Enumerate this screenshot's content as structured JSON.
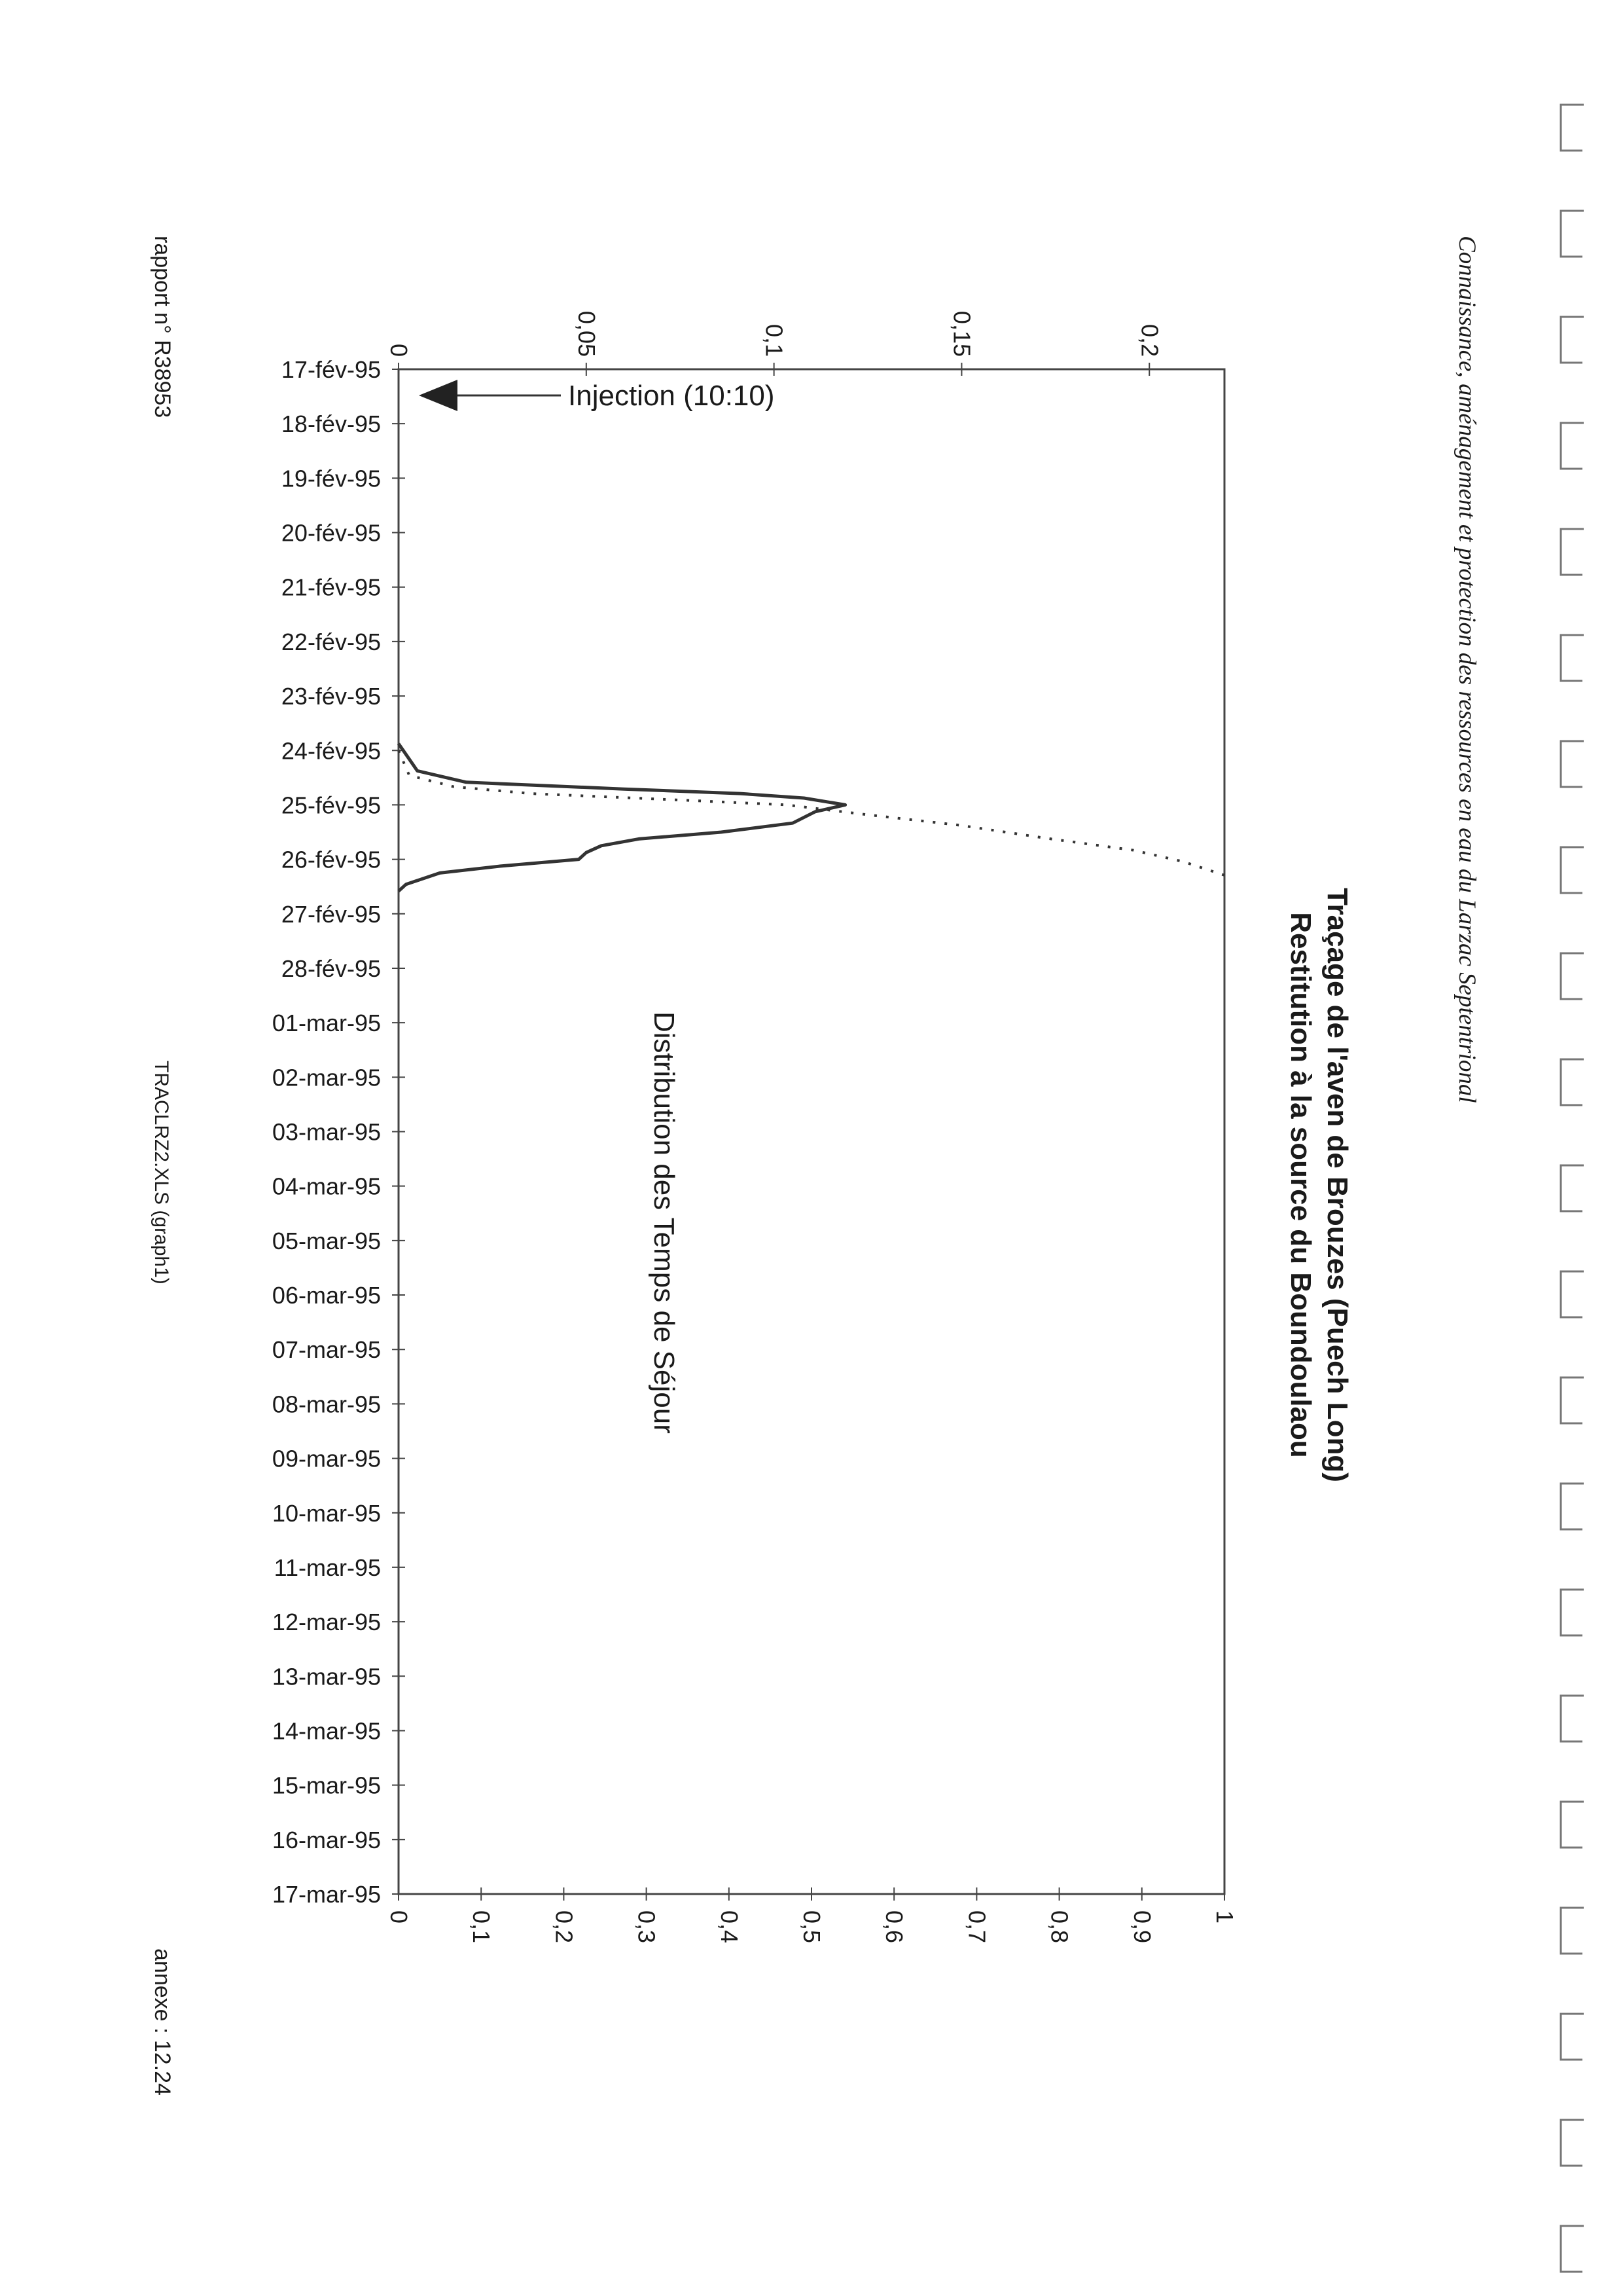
{
  "header": {
    "text": "Connaissance, aménagement et protection des ressources en eau du Larzac Septentrional"
  },
  "footer": {
    "report": "rapport n° R38953",
    "file": "TRACLRZ2.XLS (graph1)",
    "annex": "annexe : 12.24"
  },
  "chart_data": {
    "type": "line",
    "title": "Traçage de l'aven de Brouzes (Puech Long)",
    "subtitle": "Restitution à la source du Boundoulaou",
    "xlabel": "",
    "ylabel": "",
    "y2label": "",
    "grid": false,
    "xlim": [
      "1995-02-17T00:00",
      "1995-03-17T00:00"
    ],
    "x_tick_labels": [
      "17-fév-95",
      "18-fév-95",
      "19-fév-95",
      "20-fév-95",
      "21-fév-95",
      "22-fév-95",
      "23-fév-95",
      "24-fév-95",
      "25-fév-95",
      "26-fév-95",
      "27-fév-95",
      "28-fév-95",
      "01-mar-95",
      "02-mar-95",
      "03-mar-95",
      "04-mar-95",
      "05-mar-95",
      "06-mar-95",
      "07-mar-95",
      "08-mar-95",
      "09-mar-95",
      "10-mar-95",
      "11-mar-95",
      "12-mar-95",
      "13-mar-95",
      "14-mar-95",
      "15-mar-95",
      "16-mar-95",
      "17-mar-95"
    ],
    "ylim": [
      0,
      0.22
    ],
    "y_tick_labels": [
      "0",
      "0,05",
      "0,1",
      "0,15",
      "0,2"
    ],
    "y_ticks": [
      0,
      0.05,
      0.1,
      0.15,
      0.2
    ],
    "y2lim": [
      0,
      1
    ],
    "y2_tick_labels": [
      "0",
      "0,1",
      "0,2",
      "0,3",
      "0,4",
      "0,5",
      "0,6",
      "0,7",
      "0,8",
      "0,9",
      "1"
    ],
    "y2_ticks": [
      0,
      0.1,
      0.2,
      0.3,
      0.4,
      0.5,
      0.6,
      0.7,
      0.8,
      0.9,
      1
    ],
    "series": [
      {
        "axis": "left",
        "style": "solid",
        "color": "#333333",
        "x": [
          "1995-02-23T21:00",
          "1995-02-24T09:00",
          "1995-02-24T14:00",
          "1995-02-24T17:00",
          "1995-02-24T19:00",
          "1995-02-24T21:00",
          "1995-02-25T00:00",
          "1995-02-25T03:00",
          "1995-02-25T08:00",
          "1995-02-25T12:00",
          "1995-02-25T15:00",
          "1995-02-25T18:00",
          "1995-02-25T21:00",
          "1995-02-26T00:00",
          "1995-02-26T03:00",
          "1995-02-26T06:00",
          "1995-02-26T11:00",
          "1995-02-26T14:00"
        ],
        "y": [
          0,
          0.005,
          0.018,
          0.06,
          0.091,
          0.108,
          0.119,
          0.111,
          0.105,
          0.086,
          0.064,
          0.054,
          0.05,
          0.048,
          0.027,
          0.011,
          0.002,
          0
        ]
      },
      {
        "axis": "right",
        "style": "dotted",
        "color": "#333333",
        "x": [
          "1995-02-24T00:00",
          "1995-02-24T11:00",
          "1995-02-24T16:00",
          "1995-02-24T19:00",
          "1995-02-24T22:00",
          "1995-02-25T00:00",
          "1995-02-25T04:00",
          "1995-02-25T09:00",
          "1995-02-25T15:00",
          "1995-02-25T20:00",
          "1995-02-26T01:00",
          "1995-02-26T07:00"
        ],
        "y": [
          0,
          0.013,
          0.067,
          0.16,
          0.35,
          0.47,
          0.56,
          0.68,
          0.79,
          0.89,
          0.95,
          1.0
        ]
      }
    ],
    "annotations": {
      "injection": "Injection (10:10)",
      "distribution": "Distribution des Temps de Séjour"
    }
  }
}
